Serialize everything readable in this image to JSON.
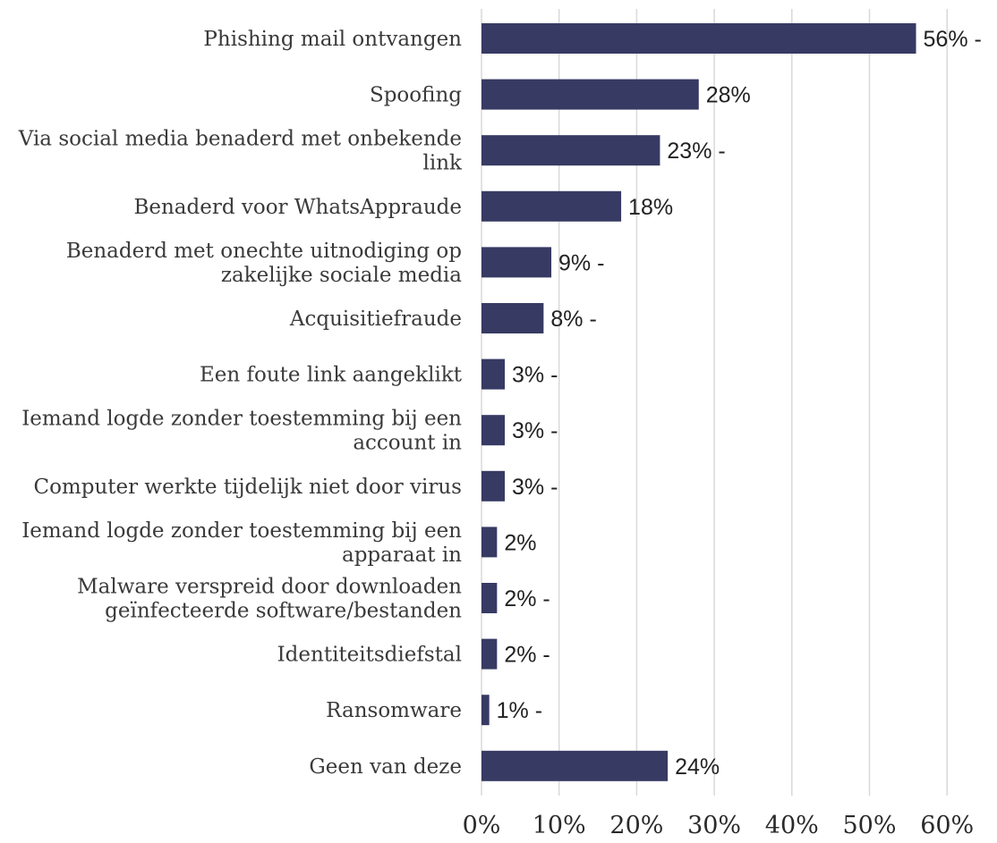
{
  "chart_data": {
    "type": "bar",
    "orientation": "horizontal",
    "categories": [
      [
        "Phishing mail ontvangen"
      ],
      [
        "Spoofing"
      ],
      [
        "Via social media benaderd met onbekende",
        "link"
      ],
      [
        "Benaderd voor WhatsAppraude"
      ],
      [
        "Benaderd met onechte uitnodiging op",
        "zakelijke sociale media"
      ],
      [
        "Acquisitiefraude"
      ],
      [
        "Een foute link aangeklikt"
      ],
      [
        "Iemand logde zonder toestemming bij een",
        "account in"
      ],
      [
        "Computer werkte tijdelijk niet door virus"
      ],
      [
        "Iemand logde zonder toestemming bij een",
        "apparaat in"
      ],
      [
        "Malware verspreid door downloaden",
        "geïnfecteerde software/bestanden"
      ],
      [
        "Identiteitsdiefstal"
      ],
      [
        "Ransomware"
      ],
      [
        "Geen van deze"
      ]
    ],
    "values": [
      56,
      28,
      23,
      18,
      9,
      8,
      3,
      3,
      3,
      2,
      2,
      2,
      1,
      24
    ],
    "value_labels": [
      "56% -",
      "28%",
      "23% -",
      "18%",
      "9% -",
      "8% -",
      "3% -",
      "3% -",
      "3% -",
      "2%",
      "2% -",
      "2% -",
      "1% -",
      "24%"
    ],
    "xlim": [
      0,
      60
    ],
    "xticks": [
      "0%",
      "10%",
      "20%",
      "30%",
      "40%",
      "50%",
      "60%"
    ],
    "grid": true,
    "bar_color": "#373a63"
  }
}
